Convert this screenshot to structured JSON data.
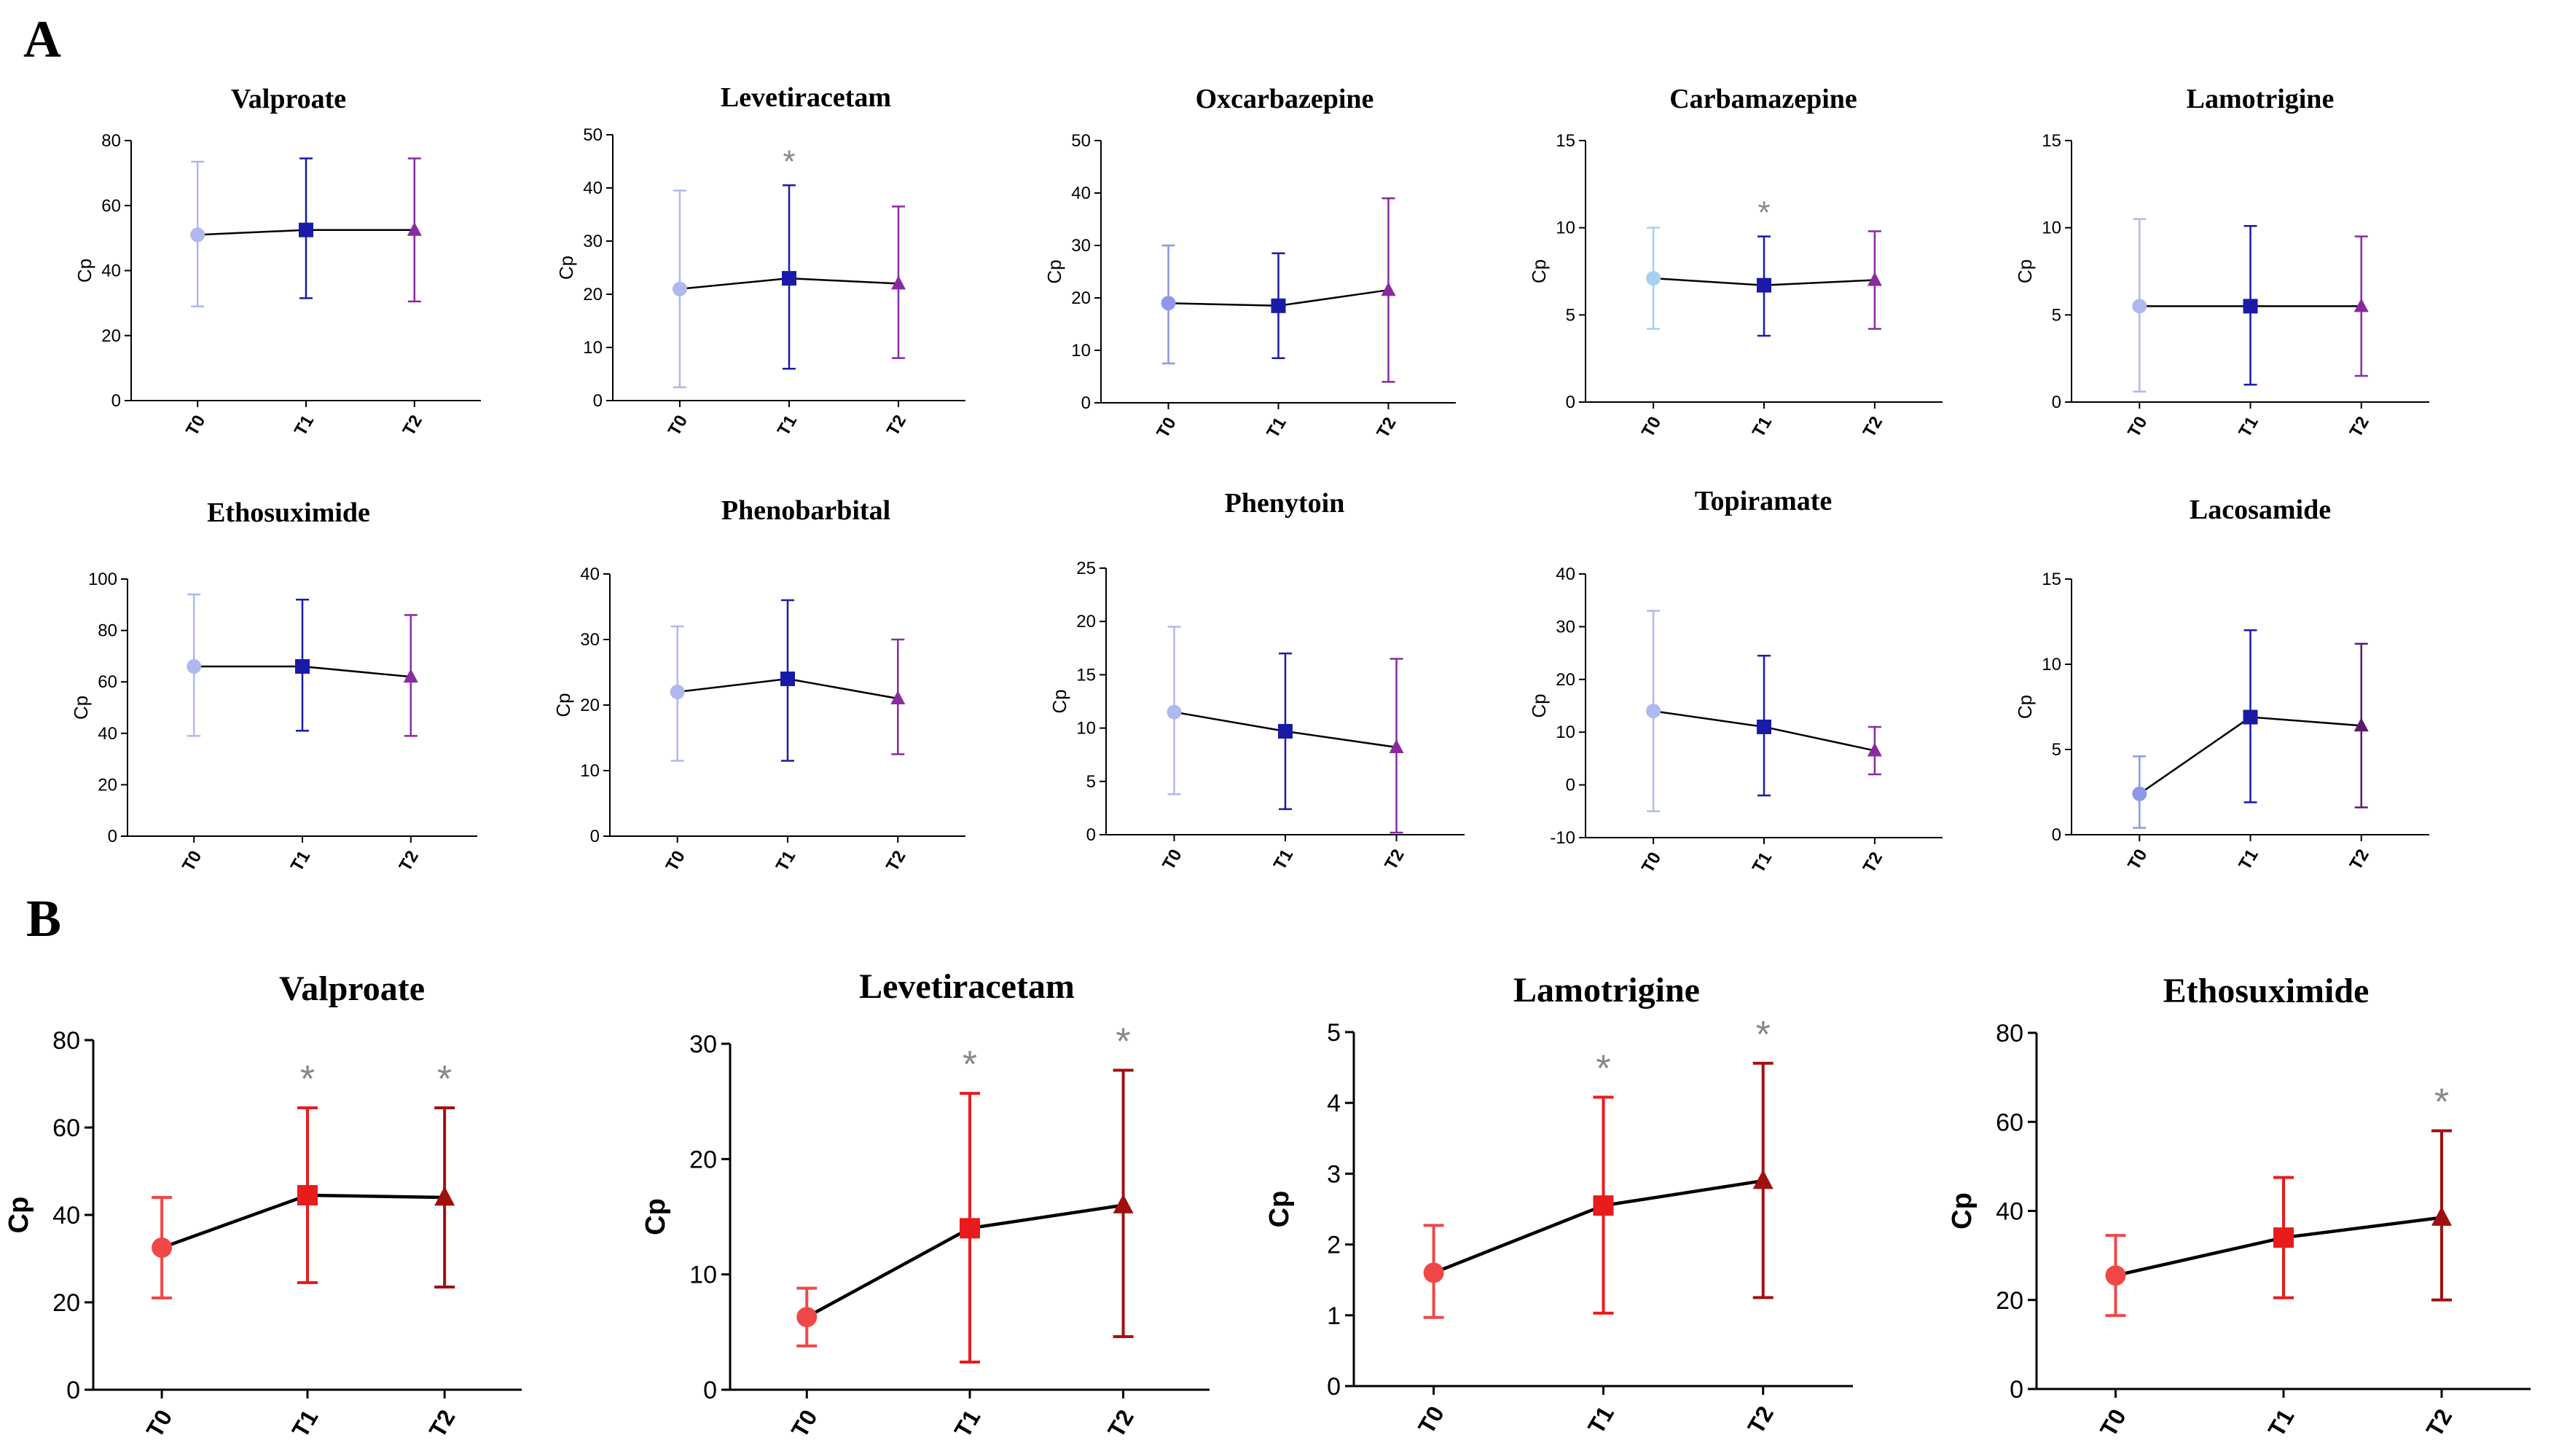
{
  "panel_labels": [
    "A",
    "B"
  ],
  "chart_data": [
    {
      "panel": "A",
      "type": "line",
      "title": "Valproate",
      "ylabel": "Cp",
      "categories": [
        "T0",
        "T1",
        "T2"
      ],
      "values": [
        51,
        52.5,
        52.5
      ],
      "err_low": [
        29,
        31.5,
        30.5
      ],
      "err_high": [
        73.5,
        74.5,
        74.5
      ],
      "ylim": [
        0,
        80
      ],
      "yticks": [
        0,
        20,
        40,
        60,
        80
      ],
      "significance": [
        "",
        "",
        ""
      ],
      "colors": [
        "#b0b8f0",
        "#1a1aa8",
        "#8a2aa0"
      ],
      "markers": [
        "circle",
        "square",
        "triangle"
      ]
    },
    {
      "panel": "A",
      "type": "line",
      "title": "Levetiracetam",
      "ylabel": "Cp",
      "categories": [
        "T0",
        "T1",
        "T2"
      ],
      "values": [
        21,
        23,
        22
      ],
      "err_low": [
        2.5,
        6,
        8
      ],
      "err_high": [
        39.5,
        40.5,
        36.5
      ],
      "ylim": [
        0,
        50
      ],
      "yticks": [
        0,
        10,
        20,
        30,
        40,
        50
      ],
      "significance": [
        "",
        "*",
        ""
      ],
      "colors": [
        "#b0b8f0",
        "#1a1aa8",
        "#8a2aa0"
      ],
      "markers": [
        "circle",
        "square",
        "triangle"
      ]
    },
    {
      "panel": "A",
      "type": "line",
      "title": "Oxcarbazepine",
      "ylabel": "Cp",
      "categories": [
        "T0",
        "T1",
        "T2"
      ],
      "values": [
        19,
        18.5,
        21.5
      ],
      "err_low": [
        7.5,
        8.5,
        4
      ],
      "err_high": [
        30,
        28.5,
        39
      ],
      "ylim": [
        0,
        50
      ],
      "yticks": [
        0,
        10,
        20,
        30,
        40,
        50
      ],
      "significance": [
        "",
        "",
        ""
      ],
      "colors": [
        "#8f98e8",
        "#1a1aa8",
        "#8a2aa0"
      ],
      "markers": [
        "circle",
        "square",
        "triangle"
      ]
    },
    {
      "panel": "A",
      "type": "line",
      "title": "Carbamazepine",
      "ylabel": "Cp",
      "categories": [
        "T0",
        "T1",
        "T2"
      ],
      "values": [
        7.1,
        6.7,
        7.0
      ],
      "err_low": [
        4.2,
        3.8,
        4.2
      ],
      "err_high": [
        10,
        9.5,
        9.8
      ],
      "ylim": [
        0,
        15
      ],
      "yticks": [
        0,
        5,
        10,
        15
      ],
      "significance": [
        "",
        "*",
        ""
      ],
      "colors": [
        "#a8d0f0",
        "#1a1aa8",
        "#8a2aa0"
      ],
      "markers": [
        "circle",
        "square",
        "triangle"
      ]
    },
    {
      "panel": "A",
      "type": "line",
      "title": "Lamotrigine",
      "ylabel": "Cp",
      "categories": [
        "T0",
        "T1",
        "T2"
      ],
      "values": [
        5.5,
        5.5,
        5.5
      ],
      "err_low": [
        0.6,
        1,
        1.5
      ],
      "err_high": [
        10.5,
        10.1,
        9.5
      ],
      "ylim": [
        0,
        15
      ],
      "yticks": [
        0,
        5,
        10,
        15
      ],
      "significance": [
        "",
        "",
        ""
      ],
      "colors": [
        "#b0b8f0",
        "#1a1aa8",
        "#8a2aa0"
      ],
      "markers": [
        "circle",
        "square",
        "triangle"
      ]
    },
    {
      "panel": "A",
      "type": "line",
      "title": "Ethosuximide",
      "ylabel": "Cp",
      "categories": [
        "T0",
        "T1",
        "T2"
      ],
      "values": [
        66,
        66,
        62
      ],
      "err_low": [
        39,
        41,
        39
      ],
      "err_high": [
        94,
        92,
        86
      ],
      "ylim": [
        0,
        100
      ],
      "yticks": [
        0,
        20,
        40,
        60,
        80,
        100
      ],
      "significance": [
        "",
        "",
        ""
      ],
      "colors": [
        "#b0b8f0",
        "#1a1aa8",
        "#8a2aa0"
      ],
      "markers": [
        "circle",
        "square",
        "triangle"
      ]
    },
    {
      "panel": "A",
      "type": "line",
      "title": "Phenobarbital",
      "ylabel": "Cp",
      "categories": [
        "T0",
        "T1",
        "T2"
      ],
      "values": [
        22,
        24,
        21
      ],
      "err_low": [
        11.5,
        11.5,
        12.5
      ],
      "err_high": [
        32,
        36,
        30
      ],
      "ylim": [
        0,
        40
      ],
      "yticks": [
        0,
        10,
        20,
        30,
        40
      ],
      "significance": [
        "",
        "",
        ""
      ],
      "colors": [
        "#b0b8f0",
        "#1a1aa8",
        "#8a2aa0"
      ],
      "markers": [
        "circle",
        "square",
        "triangle"
      ]
    },
    {
      "panel": "A",
      "type": "line",
      "title": "Phenytoin",
      "ylabel": "Cp",
      "categories": [
        "T0",
        "T1",
        "T2"
      ],
      "values": [
        11.5,
        9.7,
        8.2
      ],
      "err_low": [
        3.8,
        2.4,
        0.2
      ],
      "err_high": [
        19.5,
        17,
        16.5
      ],
      "ylim": [
        0,
        25
      ],
      "yticks": [
        0,
        5,
        10,
        15,
        20,
        25
      ],
      "significance": [
        "",
        "",
        ""
      ],
      "colors": [
        "#b0b8f0",
        "#1a1aa8",
        "#8a2aa0"
      ],
      "markers": [
        "circle",
        "square",
        "triangle"
      ]
    },
    {
      "panel": "A",
      "type": "line",
      "title": "Topiramate",
      "ylabel": "Cp",
      "categories": [
        "T0",
        "T1",
        "T2"
      ],
      "values": [
        14,
        11,
        6.5
      ],
      "err_low": [
        -5,
        -2,
        2
      ],
      "err_high": [
        33,
        24.5,
        11
      ],
      "ylim": [
        -10,
        40
      ],
      "yticks": [
        -10,
        0,
        10,
        20,
        30,
        40
      ],
      "significance": [
        "",
        "",
        ""
      ],
      "colors": [
        "#b0b8f0",
        "#1a1aa8",
        "#8a2aa0"
      ],
      "markers": [
        "circle",
        "square",
        "triangle"
      ]
    },
    {
      "panel": "A",
      "type": "line",
      "title": "Lacosamide",
      "ylabel": "Cp",
      "categories": [
        "T0",
        "T1",
        "T2"
      ],
      "values": [
        2.4,
        6.9,
        6.4
      ],
      "err_low": [
        0.4,
        1.9,
        1.6
      ],
      "err_high": [
        4.6,
        12,
        11.2
      ],
      "ylim": [
        0,
        15
      ],
      "yticks": [
        0,
        5,
        10,
        15
      ],
      "significance": [
        "",
        "",
        ""
      ],
      "colors": [
        "#8f98e8",
        "#1a1aa8",
        "#5a1a70"
      ],
      "markers": [
        "circle",
        "square",
        "triangle"
      ]
    },
    {
      "panel": "B",
      "type": "line",
      "title": "Valproate",
      "ylabel": "Cp",
      "categories": [
        "T0",
        "T1",
        "T2"
      ],
      "values": [
        32.5,
        44.5,
        44
      ],
      "err_low": [
        21,
        24.5,
        23.5
      ],
      "err_high": [
        44,
        64.5,
        64.5
      ],
      "ylim": [
        0,
        80
      ],
      "yticks": [
        0,
        20,
        40,
        60,
        80
      ],
      "significance": [
        "",
        "*",
        "*"
      ],
      "colors": [
        "#f04848",
        "#e81c1c",
        "#a01010"
      ],
      "markers": [
        "circle",
        "square",
        "triangle"
      ]
    },
    {
      "panel": "B",
      "type": "line",
      "title": "Levetiracetam",
      "ylabel": "Cp",
      "categories": [
        "T0",
        "T1",
        "T2"
      ],
      "values": [
        6.3,
        14,
        16
      ],
      "err_low": [
        3.8,
        2.4,
        4.6
      ],
      "err_high": [
        8.8,
        25.7,
        27.7
      ],
      "ylim": [
        0,
        30
      ],
      "yticks": [
        0,
        10,
        20,
        30
      ],
      "significance": [
        "",
        "*",
        "*"
      ],
      "colors": [
        "#f04848",
        "#e81c1c",
        "#a01010"
      ],
      "markers": [
        "circle",
        "square",
        "triangle"
      ]
    },
    {
      "panel": "B",
      "type": "line",
      "title": "Lamotrigine",
      "ylabel": "Cp",
      "categories": [
        "T0",
        "T1",
        "T2"
      ],
      "values": [
        1.6,
        2.55,
        2.9
      ],
      "err_low": [
        0.97,
        1.03,
        1.25
      ],
      "err_high": [
        2.27,
        4.08,
        4.56
      ],
      "ylim": [
        0,
        5
      ],
      "yticks": [
        0,
        1,
        2,
        3,
        4,
        5
      ],
      "significance": [
        "",
        "*",
        "*"
      ],
      "colors": [
        "#f04848",
        "#e81c1c",
        "#a01010"
      ],
      "markers": [
        "circle",
        "square",
        "triangle"
      ]
    },
    {
      "panel": "B",
      "type": "line",
      "title": "Ethosuximide",
      "ylabel": "Cp",
      "categories": [
        "T0",
        "T1",
        "T2"
      ],
      "values": [
        25.5,
        34,
        38.5
      ],
      "err_low": [
        16.5,
        20.5,
        20
      ],
      "err_high": [
        34.5,
        47.5,
        58
      ],
      "ylim": [
        0,
        80
      ],
      "yticks": [
        0,
        20,
        40,
        60,
        80
      ],
      "significance": [
        "",
        "",
        "*"
      ],
      "colors": [
        "#f04848",
        "#e81c1c",
        "#a01010"
      ],
      "markers": [
        "circle",
        "square",
        "triangle"
      ]
    }
  ]
}
